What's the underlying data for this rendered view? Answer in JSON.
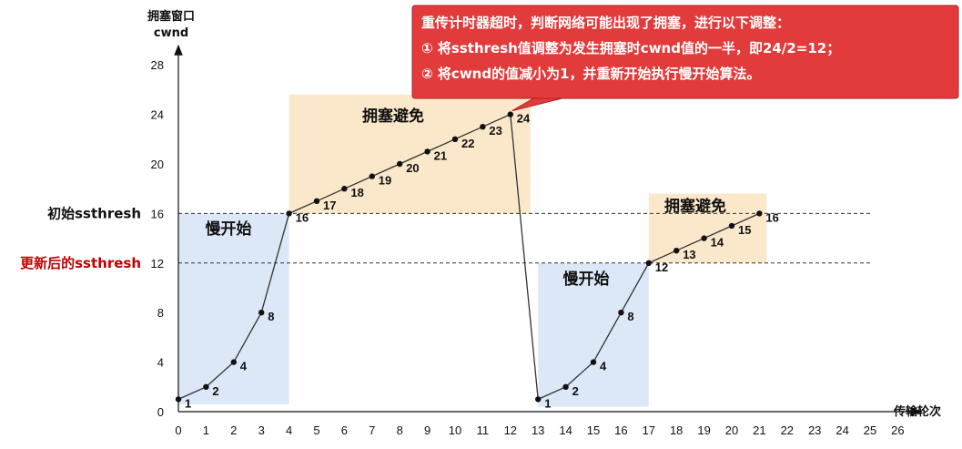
{
  "chart_data": {
    "type": "line",
    "xlabel": "传输轮次",
    "ylabel_line1": "拥塞窗口",
    "ylabel_line2": "cwnd",
    "x_ticks": [
      0,
      1,
      2,
      3,
      4,
      5,
      6,
      7,
      8,
      9,
      10,
      11,
      12,
      13,
      14,
      15,
      16,
      17,
      18,
      19,
      20,
      21,
      22,
      23,
      24,
      25,
      26
    ],
    "y_ticks": [
      0,
      4,
      8,
      12,
      16,
      20,
      24,
      28
    ],
    "xlim": [
      0,
      26
    ],
    "ylim": [
      0,
      28
    ],
    "series": [
      {
        "name": "cwnd",
        "points": [
          {
            "x": 0,
            "y": 1,
            "label": "1"
          },
          {
            "x": 1,
            "y": 2,
            "label": "2"
          },
          {
            "x": 2,
            "y": 4,
            "label": "4"
          },
          {
            "x": 3,
            "y": 8,
            "label": "8"
          },
          {
            "x": 4,
            "y": 16,
            "label": "16"
          },
          {
            "x": 5,
            "y": 17,
            "label": "17"
          },
          {
            "x": 6,
            "y": 18,
            "label": "18"
          },
          {
            "x": 7,
            "y": 19,
            "label": "19"
          },
          {
            "x": 8,
            "y": 20,
            "label": "20"
          },
          {
            "x": 9,
            "y": 21,
            "label": "21"
          },
          {
            "x": 10,
            "y": 22,
            "label": "22"
          },
          {
            "x": 11,
            "y": 23,
            "label": "23"
          },
          {
            "x": 12,
            "y": 24,
            "label": "24"
          },
          {
            "x": 13,
            "y": 1,
            "label": "1"
          },
          {
            "x": 14,
            "y": 2,
            "label": "2"
          },
          {
            "x": 15,
            "y": 4,
            "label": "4"
          },
          {
            "x": 16,
            "y": 8,
            "label": "8"
          },
          {
            "x": 17,
            "y": 12,
            "label": "12"
          },
          {
            "x": 18,
            "y": 13,
            "label": "13"
          },
          {
            "x": 19,
            "y": 14,
            "label": "14"
          },
          {
            "x": 20,
            "y": 15,
            "label": "15"
          },
          {
            "x": 21,
            "y": 16,
            "label": "16"
          }
        ]
      }
    ],
    "thresholds": [
      {
        "name": "initial-ssthresh",
        "value": 16,
        "label": "初始ssthresh",
        "color": "#111111"
      },
      {
        "name": "updated-ssthresh",
        "value": 12,
        "label": "更新后的ssthresh",
        "color": "#c00000"
      }
    ],
    "regions": [
      {
        "name": "slow-start-1",
        "label": "慢开始",
        "x_from": 0,
        "x_to": 4,
        "y_from": 0.6,
        "y_to": 16,
        "color": "#dce7f7"
      },
      {
        "name": "congestion-avoidance-1",
        "label": "拥塞避免",
        "x_from": 4,
        "x_to": 12,
        "y_from": 16,
        "y_to": 25.6,
        "color": "#fbe8cb"
      },
      {
        "name": "slow-start-2",
        "label": "慢开始",
        "x_from": 13,
        "x_to": 17,
        "y_from": 0.4,
        "y_to": 12,
        "color": "#dce7f7"
      },
      {
        "name": "congestion-avoidance-2",
        "label": "拥塞避免",
        "x_from": 17,
        "x_to": 21,
        "y_from": 12,
        "y_to": 17.6,
        "color": "#fbe8cb"
      }
    ],
    "callout": {
      "lines": [
        "重传计时器超时，判断网络可能出现了拥塞，进行以下调整：",
        "①  将ssthresh值调整为发生拥塞时cwnd值的一半，即24/2=12；",
        "②  将cwnd的值减小为1，并重新开始执行慢开始算法。"
      ],
      "points_to": {
        "x": 12,
        "y": 24
      },
      "background": "#e23b3b"
    }
  }
}
